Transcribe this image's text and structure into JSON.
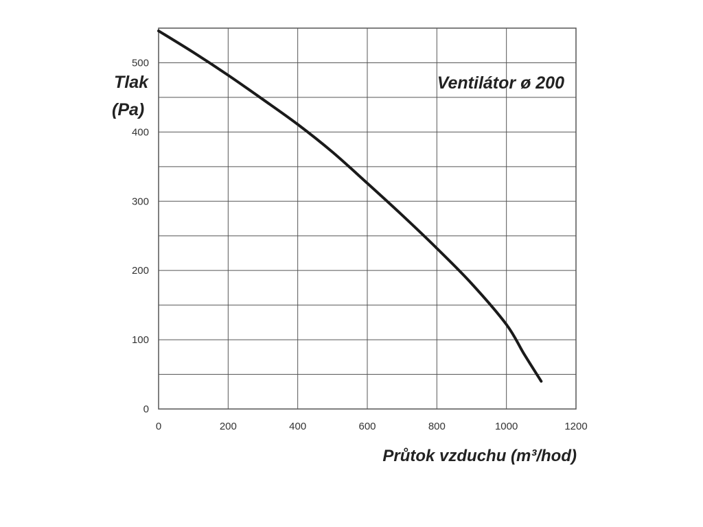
{
  "chart_data": {
    "type": "line",
    "title": "Ventilátor ø 200",
    "xlabel": "Průtok vzduchu (m³/hod)",
    "ylabel_line1": "Tlak",
    "ylabel_line2": "(Pa)",
    "xlim": [
      0,
      1200
    ],
    "ylim": [
      0,
      550
    ],
    "x_ticks": [
      0,
      200,
      400,
      600,
      800,
      1000,
      1200
    ],
    "y_ticks": [
      0,
      100,
      200,
      300,
      400,
      500
    ],
    "x_grid_step": 200,
    "y_grid_step": 50,
    "grid": true,
    "line_color": "#1a1a1a",
    "grid_color": "#555555",
    "series": [
      {
        "x": [
          0,
          100,
          200,
          300,
          400,
          500,
          600,
          700,
          800,
          900,
          1000,
          1050,
          1100
        ],
        "y": [
          546,
          515,
          482,
          447,
          411,
          371,
          326,
          280,
          232,
          181,
          122,
          80,
          40
        ]
      }
    ]
  }
}
